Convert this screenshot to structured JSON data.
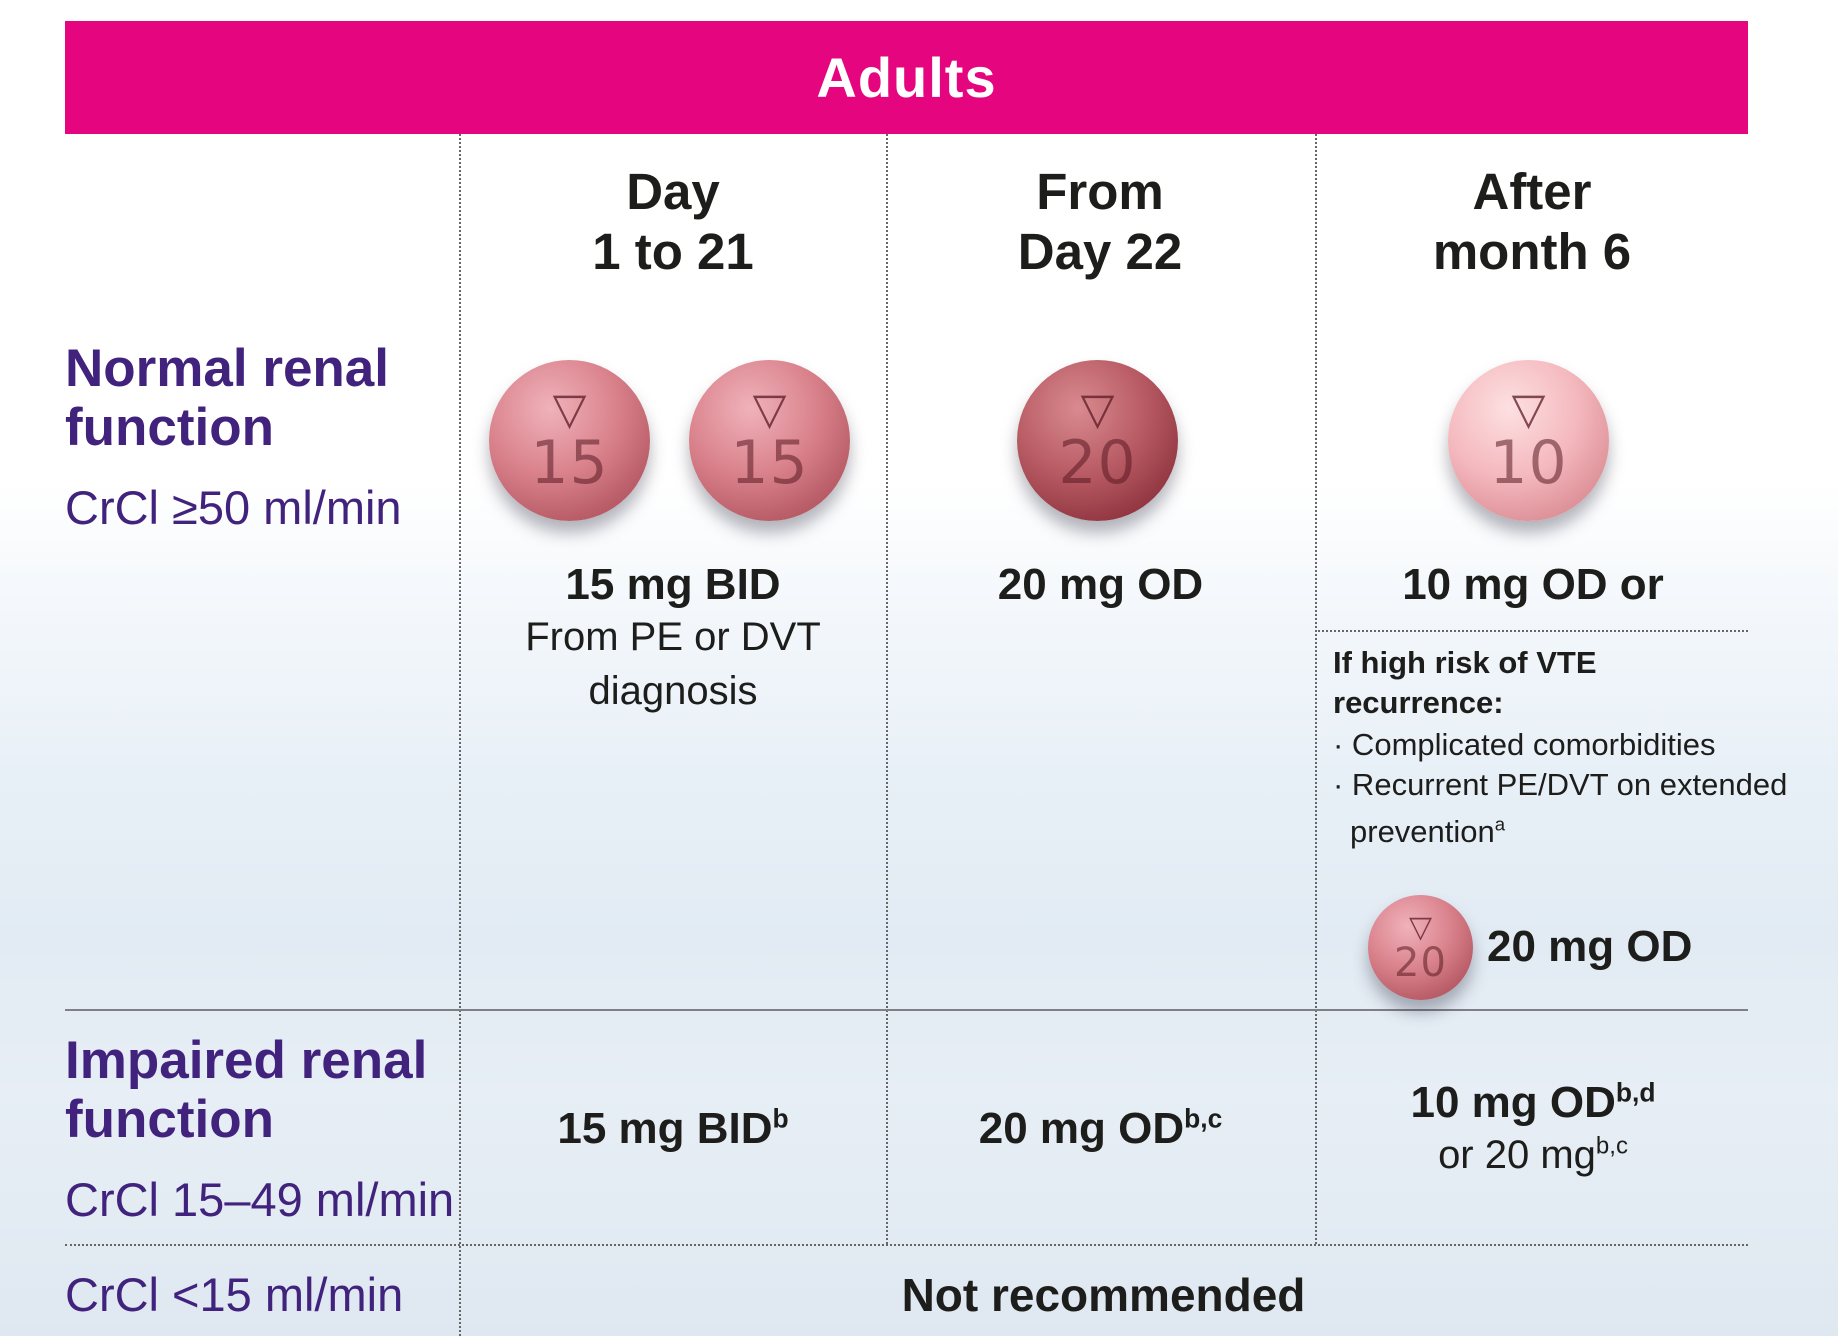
{
  "header": {
    "title": "Adults"
  },
  "columns": [
    {
      "line1": "Day",
      "line2": "1 to 21"
    },
    {
      "line1": "From",
      "line2": "Day 22"
    },
    {
      "line1": "After",
      "line2": "month 6"
    }
  ],
  "rows": {
    "normal": {
      "title_line1": "Normal renal",
      "title_line2": "function",
      "crcl": "CrCl ≥50 ml/min"
    },
    "impaired": {
      "title_line1": "Impaired renal",
      "title_line2": "function",
      "crcl": "CrCl 15–49 ml/min"
    },
    "severe": {
      "crcl": "CrCl <15 ml/min",
      "text": "Not recommended"
    }
  },
  "pills": {
    "mark": "▽",
    "day1_21": "15",
    "day22": "20",
    "month6": "10",
    "high_risk": "20"
  },
  "normal_doses": {
    "day1_21_bold": "15 mg BID",
    "day1_21_line1": "From PE or DVT",
    "day1_21_line2": "diagnosis",
    "day22": "20 mg OD",
    "month6": "10 mg OD or",
    "vte_head_line1": "If high risk of VTE",
    "vte_head_line2": "recurrence:",
    "vte_item1": "· Complicated comorbidities",
    "vte_item2": "· Recurrent PE/DVT on extended",
    "vte_item2_cont": "prevention",
    "vte_item2_sup": "a",
    "high_risk_dose": "20 mg OD"
  },
  "impaired_doses": {
    "day1_21": "15 mg BID",
    "day1_21_sup": "b",
    "day22": "20 mg OD",
    "day22_sup": "b,c",
    "month6_line1": "10 mg OD",
    "month6_line1_sup": "b,d",
    "month6_line2": "or 20 mg",
    "month6_line2_sup": "b,c"
  }
}
